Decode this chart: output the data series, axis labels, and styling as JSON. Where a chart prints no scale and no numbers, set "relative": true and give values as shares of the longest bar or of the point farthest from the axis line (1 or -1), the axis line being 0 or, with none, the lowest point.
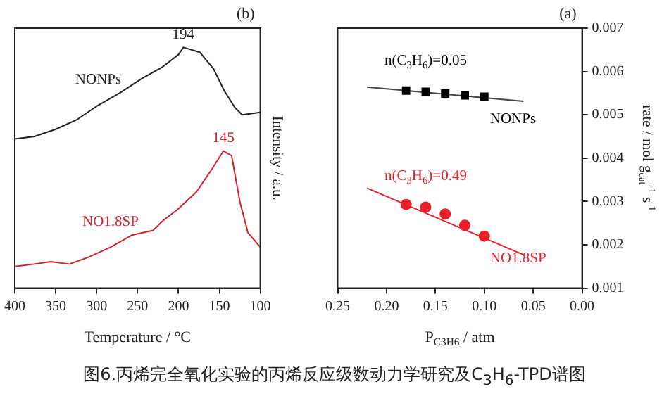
{
  "chart_data": [
    {
      "type": "line",
      "title": "(b)",
      "xlabel": "Temperature / °C",
      "ylabel": "Intensity / a.u.",
      "relative": true,
      "xlim": [
        400,
        100
      ],
      "xticks": [
        400,
        350,
        300,
        250,
        200,
        150,
        100
      ],
      "legend": false,
      "grid": false,
      "marker": "none",
      "line_style": "solid",
      "series": [
        {
          "name": "NONPs",
          "color": "#222222",
          "x": [
            400,
            376,
            350,
            324,
            298,
            272,
            245,
            219,
            200,
            194,
            174,
            157,
            144,
            131,
            122,
            100
          ],
          "values": [
            0.62,
            0.63,
            0.66,
            0.7,
            0.76,
            0.81,
            0.87,
            0.92,
            0.97,
            1.0,
            0.98,
            0.91,
            0.82,
            0.75,
            0.72,
            0.73
          ]
        },
        {
          "name": "NO1.8SP",
          "color": "#d8202a",
          "x": [
            400,
            376,
            356,
            333,
            309,
            283,
            257,
            231,
            219,
            200,
            178,
            158,
            145,
            135,
            125,
            115,
            100
          ],
          "values": [
            0.09,
            0.1,
            0.11,
            0.1,
            0.13,
            0.17,
            0.22,
            0.24,
            0.28,
            0.33,
            0.4,
            0.5,
            0.57,
            0.55,
            0.36,
            0.23,
            0.17
          ]
        }
      ],
      "annotations": [
        {
          "text": "194",
          "x": 194,
          "y": 1.0
        },
        {
          "text": "145",
          "x": 145,
          "y": 0.57
        },
        "图6.丙烯完全氧化实验的丙烯反应级数动力学研究及C$_{3}$H$_{6}$-TPD谱图"
      ]
    },
    {
      "type": "scatter",
      "title": "(a)",
      "xlabel": "P$_{C3H6}$ / atm",
      "ylabel": "rate / mol g$_{cat}$$^{-1}$ s$^{-1}$",
      "xlim": [
        0.25,
        0
      ],
      "xticks": [
        {
          "value": 0.25,
          "label": "0.25"
        },
        {
          "value": 0.2,
          "label": "0.20"
        },
        {
          "value": 0.15,
          "label": "0.15"
        },
        {
          "value": 0.1,
          "label": "0.10"
        },
        {
          "value": 0.05,
          "label": "0.05"
        },
        {
          "value": 0,
          "label": "0.00"
        }
      ],
      "ylim": [
        0.001,
        0.007
      ],
      "yticks": [
        0.001,
        0.002,
        0.003,
        0.004,
        0.005,
        0.006,
        0.007
      ],
      "legend": false,
      "grid": false,
      "series": [
        {
          "name": "NONPs",
          "color": "#000000",
          "marker": "square",
          "x": [
            0.18,
            0.16,
            0.14,
            0.12,
            0.1
          ],
          "values": [
            0.00556,
            0.00553,
            0.00549,
            0.00545,
            0.00542
          ]
        },
        {
          "type": "line",
          "color": "#444444",
          "marker": "none",
          "x": [
            0.22,
            0.06
          ],
          "values": [
            0.00564,
            0.00531
          ]
        },
        {
          "name": "NO1.8SP",
          "color": "#e8202a",
          "marker": "circle",
          "x": [
            0.18,
            0.16,
            0.14,
            0.12,
            0.1
          ],
          "values": [
            0.00293,
            0.00287,
            0.00271,
            0.00245,
            0.0022
          ]
        },
        {
          "type": "line",
          "color": "#e8202a",
          "marker": "none",
          "x": [
            0.22,
            0.06
          ],
          "values": [
            0.00331,
            0.00177
          ]
        }
      ],
      "annotations": [
        "n(C$_{3}$H$_{6}$)=0.05",
        "n(C$_{3}$H$_{6}$)=0.49"
      ]
    }
  ]
}
